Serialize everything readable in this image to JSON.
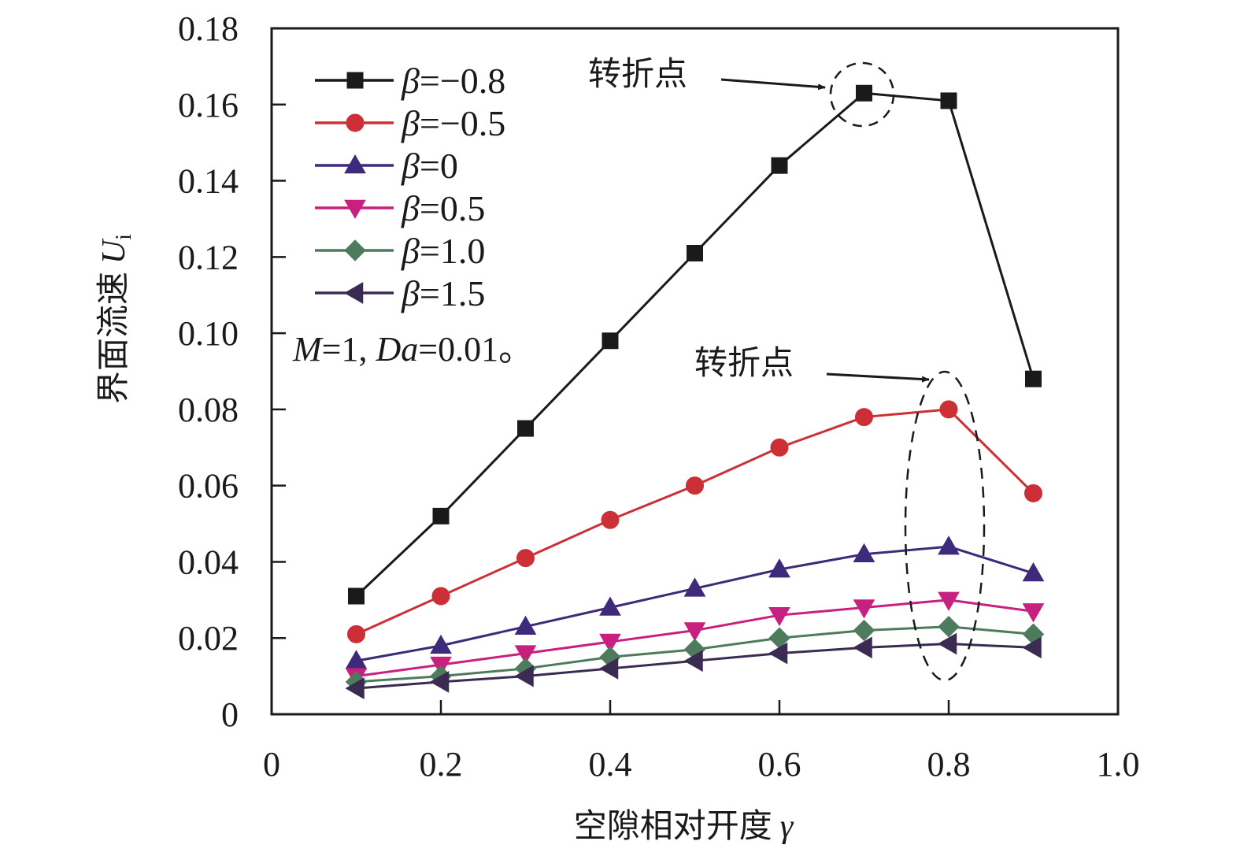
{
  "chart_data": {
    "type": "line",
    "title": "",
    "xlabel": "空隙相对开度 γ",
    "xlabel_text": "空隙相对开度",
    "xlabel_symbol": "γ",
    "ylabel": "界面流速 Ui",
    "ylabel_text": "界面流速",
    "ylabel_symbol": "U",
    "ylabel_subscript": "i",
    "xlim": [
      0,
      1.0
    ],
    "ylim": [
      0,
      0.18
    ],
    "x_ticks": [
      0,
      0.2,
      0.4,
      0.6,
      0.8,
      1.0
    ],
    "x_tick_labels": [
      "0",
      "0.2",
      "0.4",
      "0.6",
      "0.8",
      "1.0"
    ],
    "y_ticks": [
      0,
      0.02,
      0.04,
      0.06,
      0.08,
      0.1,
      0.12,
      0.14,
      0.16,
      0.18
    ],
    "y_tick_labels": [
      "0",
      "0.02",
      "0.04",
      "0.06",
      "0.08",
      "0.10",
      "0.12",
      "0.14",
      "0.16",
      "0.18"
    ],
    "grid": false,
    "legend_position": "top-left",
    "x": [
      0.1,
      0.2,
      0.3,
      0.4,
      0.5,
      0.6,
      0.7,
      0.8,
      0.9
    ],
    "series": [
      {
        "name": "β=−0.8",
        "symbol": "β",
        "value_label": "=−0.8",
        "marker": "square",
        "color": "#1a1a1a",
        "values": [
          0.031,
          0.052,
          0.075,
          0.098,
          0.121,
          0.144,
          0.163,
          0.161,
          0.088
        ]
      },
      {
        "name": "β=−0.5",
        "symbol": "β",
        "value_label": "=−0.5",
        "marker": "circle",
        "color": "#cc2f36",
        "values": [
          0.021,
          0.031,
          0.041,
          0.051,
          0.06,
          0.07,
          0.078,
          0.08,
          0.058
        ]
      },
      {
        "name": "β=0",
        "symbol": "β",
        "value_label": "=0",
        "marker": "triangle-up",
        "color": "#3e2a7a",
        "values": [
          0.014,
          0.018,
          0.023,
          0.028,
          0.033,
          0.038,
          0.042,
          0.044,
          0.037
        ]
      },
      {
        "name": "β=0.5",
        "symbol": "β",
        "value_label": "=0.5",
        "marker": "triangle-down",
        "color": "#c8207e",
        "values": [
          0.01,
          0.013,
          0.016,
          0.019,
          0.022,
          0.026,
          0.028,
          0.03,
          0.027
        ]
      },
      {
        "name": "β=1.0",
        "symbol": "β",
        "value_label": "=1.0",
        "marker": "diamond",
        "color": "#4e7a5e",
        "values": [
          0.0085,
          0.01,
          0.012,
          0.015,
          0.017,
          0.02,
          0.022,
          0.023,
          0.021
        ]
      },
      {
        "name": "β=1.5",
        "symbol": "β",
        "value_label": "=1.5",
        "marker": "triangle-left",
        "color": "#3b2a52",
        "values": [
          0.0068,
          0.0085,
          0.01,
          0.012,
          0.014,
          0.016,
          0.0175,
          0.0185,
          0.0175
        ]
      }
    ],
    "parameter_note": {
      "m_symbol": "M",
      "m_value": "=1, ",
      "da_symbol": "Da",
      "da_value": "=0.01。"
    },
    "annotations": [
      {
        "text": "转折点",
        "target_series": "β=−0.8",
        "target_x": 0.7,
        "highlight": "dashed-circle"
      },
      {
        "text": "转折点",
        "target_x": 0.8,
        "highlight": "dashed-ellipse",
        "covers": "β=−0.5 through β=1.5"
      }
    ]
  }
}
